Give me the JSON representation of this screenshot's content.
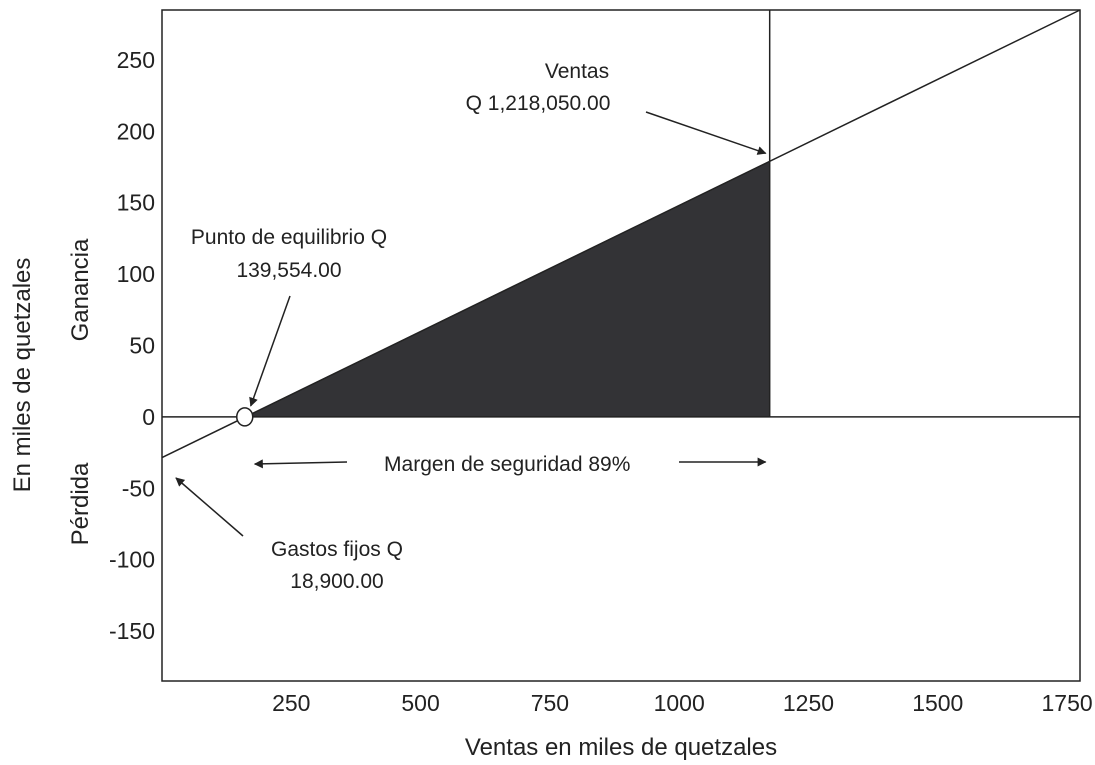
{
  "chart_data": {
    "type": "line",
    "title": "",
    "xlabel": "Ventas en miles de quetzales",
    "ylabel": "En miles de quetzales",
    "ylabel_upper": "Ganancia",
    "ylabel_lower": "Pérdida",
    "xlim": [
      0,
      1775
    ],
    "ylim": [
      -185,
      285
    ],
    "x_ticks": [
      250,
      500,
      750,
      1000,
      1250,
      1500,
      1750
    ],
    "x_tick_labels": [
      "250",
      "500",
      "750",
      "1000",
      "1250",
      "1500",
      "1750"
    ],
    "y_ticks": [
      250,
      200,
      150,
      100,
      50,
      0,
      -50,
      -100,
      -150
    ],
    "y_tick_labels": [
      "250",
      "200",
      "150",
      "100",
      "50",
      "0",
      "-50",
      "-100",
      "-150"
    ],
    "grid": false,
    "series": [
      {
        "x": [
          0,
          1775
        ],
        "y": [
          -28.5,
          285
        ]
      }
    ],
    "break_even": {
      "x": 160,
      "y": 0
    },
    "sales_marker_x": 1175,
    "profit_area": {
      "x_start": 160,
      "x_end": 1175
    },
    "annotations": {
      "ventas_title": "Ventas",
      "ventas_value": "Q 1,218,050.00",
      "equilibrio_title": "Punto de equilibrio Q",
      "equilibrio_value": "139,554.00",
      "margen": "Margen de seguridad  89%",
      "gastos_title": "Gastos fijos Q",
      "gastos_value": "18,900.00"
    },
    "colors": {
      "profit_fill": "#333336",
      "line": "#222222"
    }
  }
}
